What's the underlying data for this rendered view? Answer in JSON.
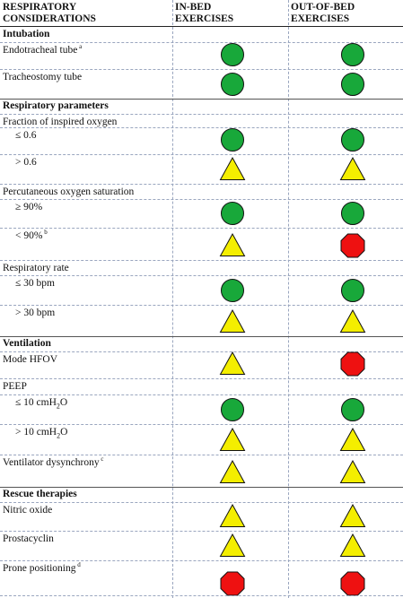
{
  "headers": {
    "col1": [
      "RESPIRATORY",
      "CONSIDERATIONS"
    ],
    "col2": [
      "IN-BED",
      "EXERCISES"
    ],
    "col3": [
      "OUT-OF-BED",
      "EXERCISES"
    ]
  },
  "legend_colors": {
    "green": "#18a83a",
    "yellow": "#f4ee00",
    "red": "#ee1111"
  },
  "rows": [
    {
      "kind": "section",
      "label": "Intubation"
    },
    {
      "kind": "item",
      "label": "Endotracheal tube",
      "sup": "a",
      "in_bed": "green-circle",
      "out_of_bed": "green-circle"
    },
    {
      "kind": "item",
      "label": "Tracheostomy tube",
      "in_bed": "green-circle",
      "out_of_bed": "green-circle"
    },
    {
      "kind": "section",
      "label": "Respiratory parameters"
    },
    {
      "kind": "group",
      "label": "Fraction of inspired oxygen"
    },
    {
      "kind": "sub",
      "label": "≤ 0.6",
      "in_bed": "green-circle",
      "out_of_bed": "green-circle"
    },
    {
      "kind": "sub",
      "label": "> 0.6",
      "in_bed": "yellow-triangle",
      "out_of_bed": "yellow-triangle"
    },
    {
      "kind": "group",
      "label": "Percutaneous oxygen saturation"
    },
    {
      "kind": "sub",
      "label": "≥ 90%",
      "in_bed": "green-circle",
      "out_of_bed": "green-circle"
    },
    {
      "kind": "sub",
      "label": "< 90%",
      "sup": "b",
      "in_bed": "yellow-triangle",
      "out_of_bed": "red-octagon"
    },
    {
      "kind": "group",
      "label": "Respiratory rate"
    },
    {
      "kind": "sub",
      "label": "≤ 30 bpm",
      "in_bed": "green-circle",
      "out_of_bed": "green-circle"
    },
    {
      "kind": "sub",
      "label": "> 30 bpm",
      "in_bed": "yellow-triangle",
      "out_of_bed": "yellow-triangle"
    },
    {
      "kind": "section",
      "label": "Ventilation"
    },
    {
      "kind": "item",
      "label": "Mode HFOV",
      "in_bed": "yellow-triangle",
      "out_of_bed": "red-octagon"
    },
    {
      "kind": "group",
      "label": "PEEP"
    },
    {
      "kind": "sub",
      "label": "≤ 10 cmH",
      "sub_script": "2",
      "suffix": "O",
      "in_bed": "green-circle",
      "out_of_bed": "green-circle"
    },
    {
      "kind": "sub",
      "label": "> 10 cmH",
      "sub_script": "2",
      "suffix": "O",
      "in_bed": "yellow-triangle",
      "out_of_bed": "yellow-triangle"
    },
    {
      "kind": "item",
      "label": "Ventilator dysynchrony",
      "sup": "c",
      "in_bed": "yellow-triangle",
      "out_of_bed": "yellow-triangle"
    },
    {
      "kind": "section",
      "label": "Rescue therapies"
    },
    {
      "kind": "item",
      "label": "Nitric oxide",
      "in_bed": "yellow-triangle",
      "out_of_bed": "yellow-triangle"
    },
    {
      "kind": "item",
      "label": "Prostacyclin",
      "in_bed": "yellow-triangle",
      "out_of_bed": "yellow-triangle"
    },
    {
      "kind": "item",
      "label": "Prone positioning",
      "sup": "d",
      "in_bed": "red-octagon",
      "out_of_bed": "red-octagon"
    }
  ]
}
